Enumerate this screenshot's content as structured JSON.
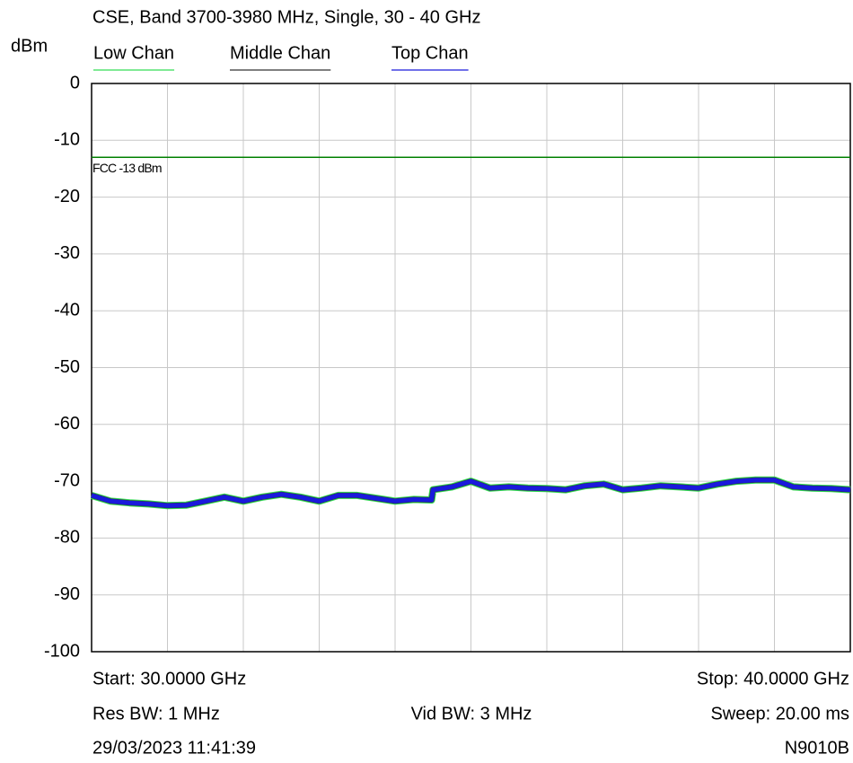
{
  "chart_data": {
    "type": "line",
    "title": "CSE, Band 3700-3980 MHz, Single, 30 - 40 GHz",
    "y_label": "dBm",
    "xlim": [
      30,
      40
    ],
    "xticks": [
      30,
      31,
      32,
      33,
      34,
      35,
      36,
      37,
      38,
      39,
      40
    ],
    "ylim": [
      -100,
      0
    ],
    "yticks": [
      0,
      -10,
      -20,
      -30,
      -40,
      -50,
      -60,
      -70,
      -80,
      -90,
      -100
    ],
    "grid": true,
    "legend": "top",
    "x": [
      30,
      30.25,
      30.5,
      30.75,
      31,
      31.25,
      31.5,
      31.75,
      32,
      32.25,
      32.5,
      32.75,
      33,
      33.25,
      33.5,
      33.75,
      34,
      34.25,
      34.48,
      34.5,
      34.75,
      35,
      35.25,
      35.5,
      35.75,
      36,
      36.25,
      36.5,
      36.75,
      37,
      37.25,
      37.5,
      37.75,
      38,
      38.25,
      38.5,
      38.75,
      39,
      39.25,
      39.5,
      39.75,
      40
    ],
    "series": [
      {
        "name": "Low Chan",
        "color": "#33dd55",
        "values": [
          -72.5,
          -73.5,
          -73.8,
          -74,
          -74.3,
          -74.2,
          -73.5,
          -72.8,
          -73.5,
          -72.8,
          -72.3,
          -72.8,
          -73.5,
          -72.5,
          -72.5,
          -73,
          -73.5,
          -73.2,
          -73.3,
          -71.5,
          -71,
          -70,
          -71.2,
          -71,
          -71.2,
          -71.3,
          -71.5,
          -70.8,
          -70.5,
          -71.5,
          -71.2,
          -70.8,
          -71,
          -71.2,
          -70.5,
          -70,
          -69.8,
          -69.8,
          -71,
          -71.2,
          -71.3,
          -71.5
        ]
      },
      {
        "name": "Middle Chan",
        "color": "#333333",
        "values": [
          -72.5,
          -73.5,
          -73.8,
          -74,
          -74.3,
          -74.2,
          -73.5,
          -72.8,
          -73.5,
          -72.8,
          -72.3,
          -72.8,
          -73.5,
          -72.5,
          -72.5,
          -73,
          -73.5,
          -73.2,
          -73.3,
          -71.5,
          -71,
          -70,
          -71.2,
          -71,
          -71.2,
          -71.3,
          -71.5,
          -70.8,
          -70.5,
          -71.5,
          -71.2,
          -70.8,
          -71,
          -71.2,
          -70.5,
          -70,
          -69.8,
          -69.8,
          -71,
          -71.2,
          -71.3,
          -71.5
        ]
      },
      {
        "name": "Top Chan",
        "color": "#1a1adc",
        "values": [
          -72.5,
          -73.5,
          -73.8,
          -74,
          -74.3,
          -74.2,
          -73.5,
          -72.8,
          -73.5,
          -72.8,
          -72.3,
          -72.8,
          -73.5,
          -72.5,
          -72.5,
          -73,
          -73.5,
          -73.2,
          -73.3,
          -71.5,
          -71,
          -70,
          -71.2,
          -71,
          -71.2,
          -71.3,
          -71.5,
          -70.8,
          -70.5,
          -71.5,
          -71.2,
          -70.8,
          -71,
          -71.2,
          -70.5,
          -70,
          -69.8,
          -69.8,
          -71,
          -71.2,
          -71.3,
          -71.5
        ]
      }
    ],
    "limit_line": {
      "label": "FCC -13 dBm",
      "value": -13,
      "color": "#008000"
    },
    "footer": {
      "start": "Start: 30.0000 GHz",
      "stop": "Stop: 40.0000 GHz",
      "res_bw": "Res BW: 1 MHz",
      "vid_bw": "Vid BW: 3 MHz",
      "sweep": "Sweep: 20.00 ms",
      "timestamp": "29/03/2023 11:41:39",
      "instrument": "N9010B"
    }
  }
}
